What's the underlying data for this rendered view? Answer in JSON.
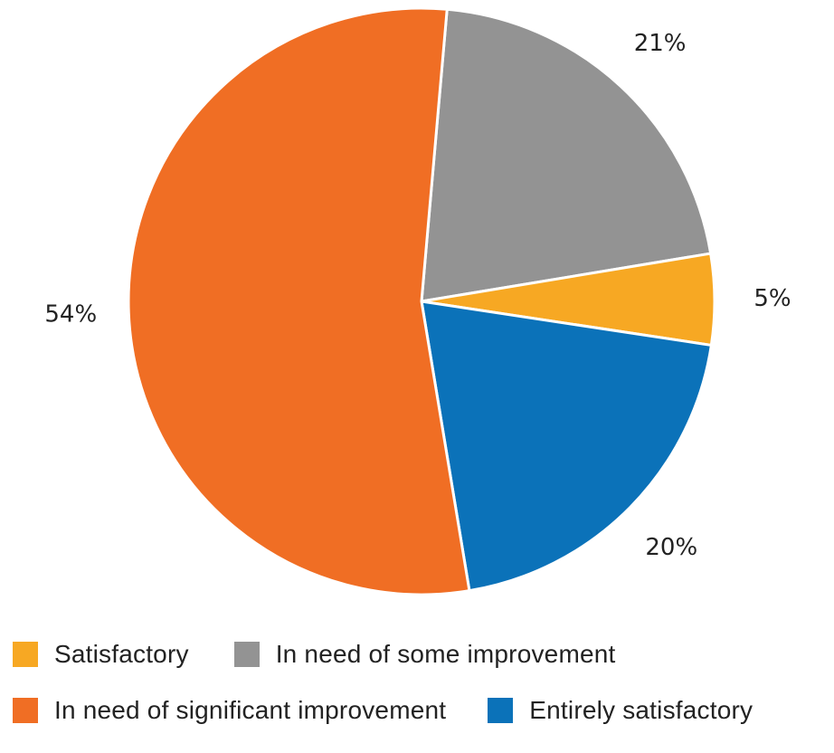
{
  "chart_data": {
    "type": "pie",
    "slices": [
      {
        "name": "In need of some improvement",
        "value": 21,
        "label": "21%",
        "color": "#939393"
      },
      {
        "name": "Satisfactory",
        "value": 5,
        "label": "5%",
        "color": "#F7A823"
      },
      {
        "name": "Entirely satisfactory",
        "value": 20,
        "label": "20%",
        "color": "#0B72B9"
      },
      {
        "name": "In need of significant improvement",
        "value": 54,
        "label": "54%",
        "color": "#F06E24"
      }
    ],
    "start_angle_deg": 5,
    "direction": "clockwise",
    "legend_position": "bottom"
  },
  "legend": {
    "rows": [
      [
        {
          "label": "Satisfactory",
          "color": "#F7A823"
        },
        {
          "label": "In need of some improvement",
          "color": "#939393"
        }
      ],
      [
        {
          "label": "In need of significant improvement",
          "color": "#F06E24"
        },
        {
          "label": "Entirely satisfactory",
          "color": "#0B72B9"
        }
      ]
    ]
  }
}
